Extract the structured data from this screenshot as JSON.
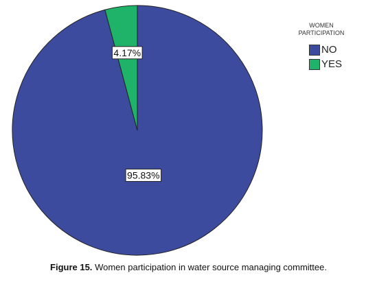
{
  "chart_data": {
    "type": "pie",
    "legend_title": "WOMEN PARTICIPATION",
    "categories": [
      "NO",
      "YES"
    ],
    "values": [
      95.83,
      4.17
    ],
    "value_labels": [
      "95.83%",
      "4.17%"
    ],
    "colors": [
      "#3d4b9e",
      "#1fb36a"
    ],
    "legend_position": "upper right",
    "caption_label": "Figure 15.",
    "caption": "Women participation in water source managing committee."
  }
}
